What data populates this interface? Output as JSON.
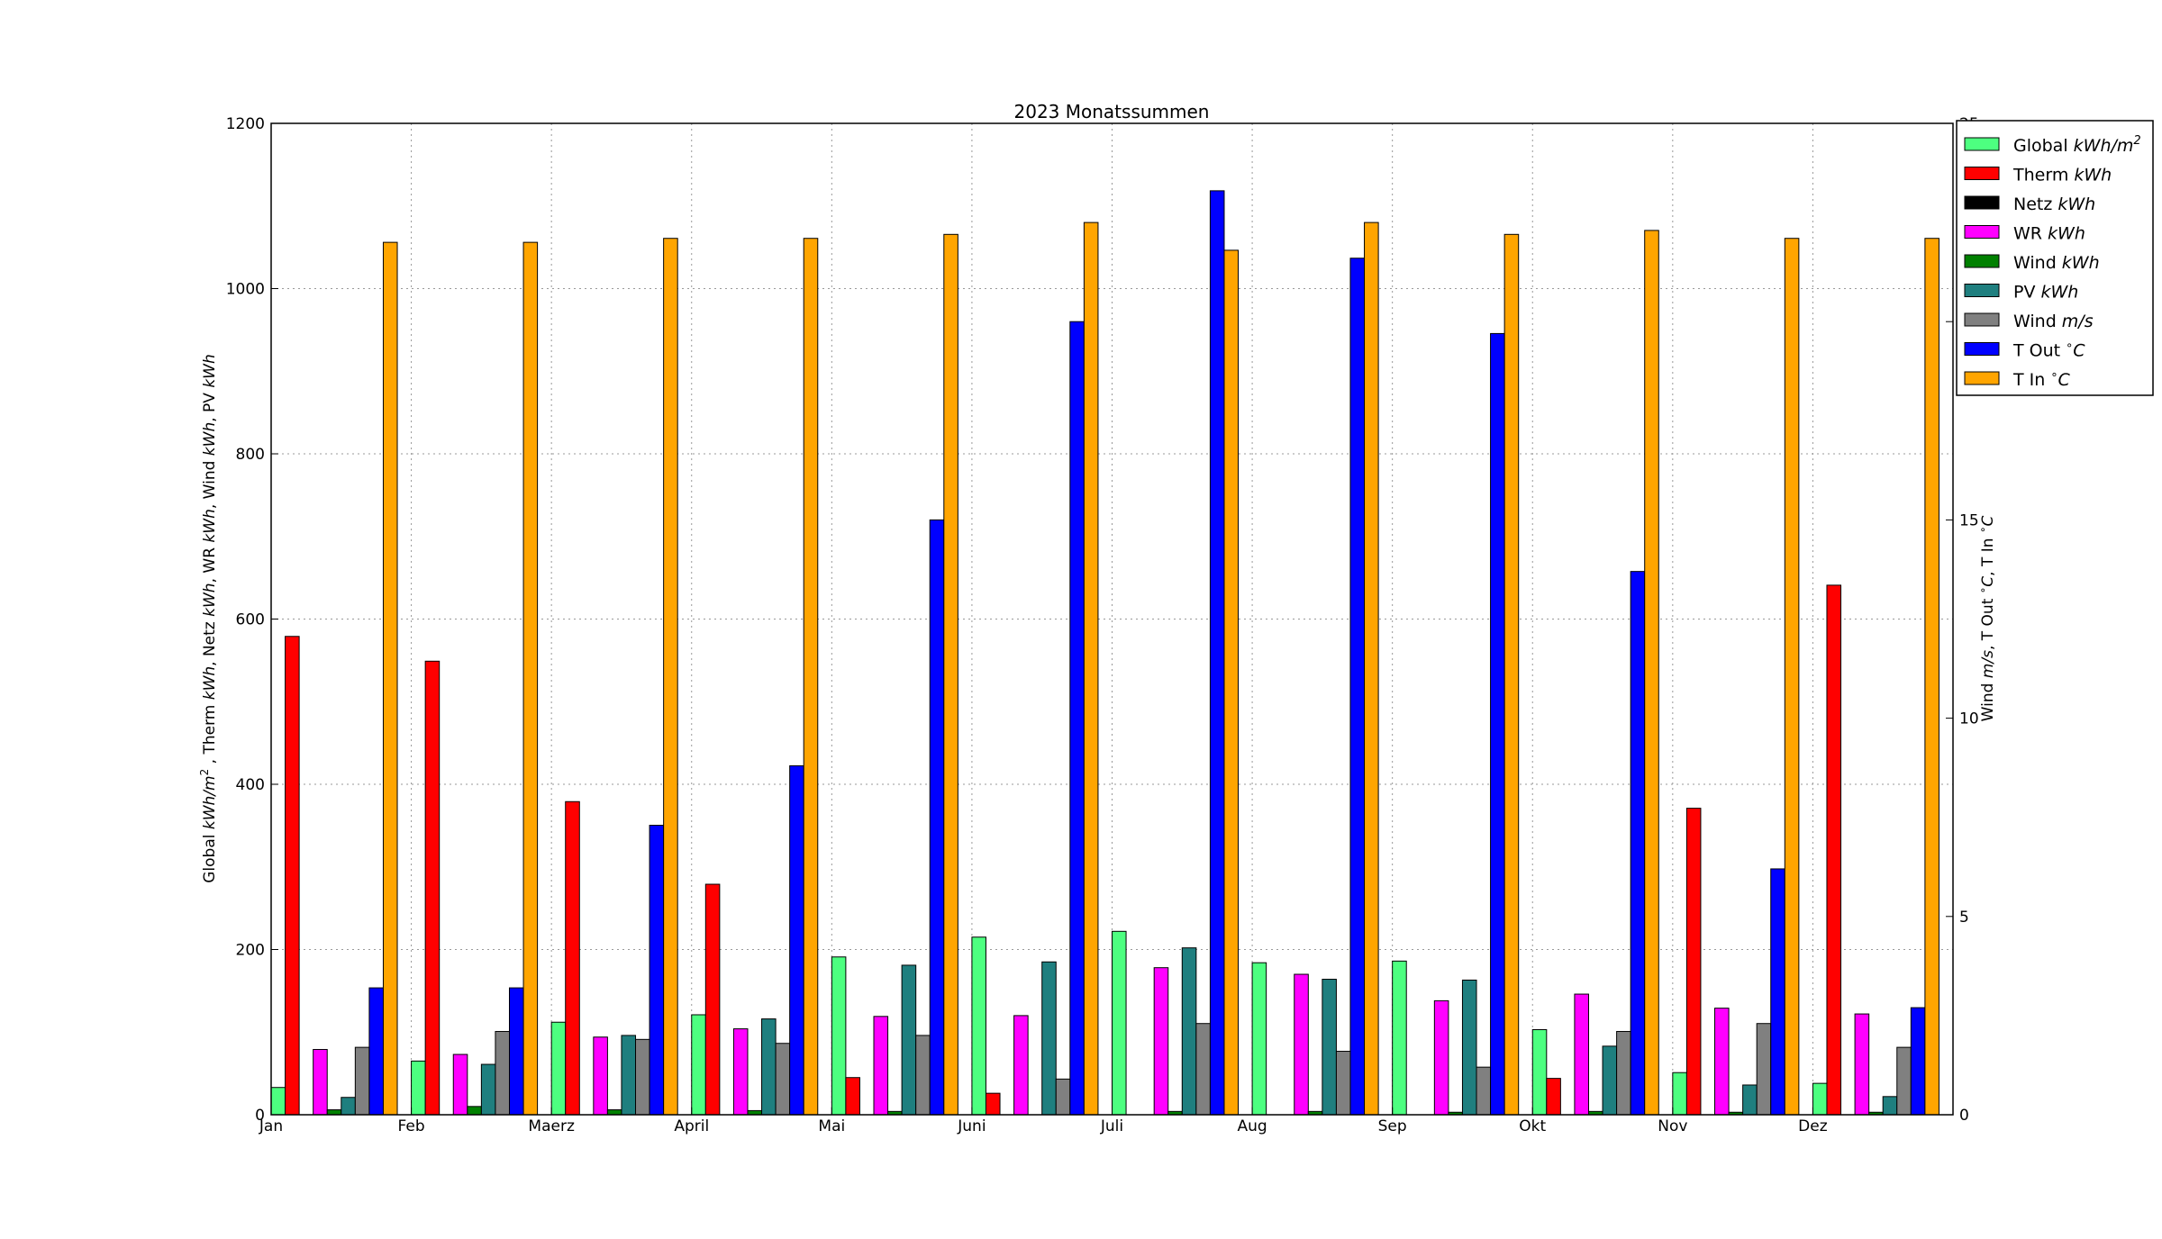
{
  "chart_data": {
    "type": "bar",
    "title": "2023 Monatssummen",
    "categories": [
      "Jan",
      "Feb",
      "Maerz",
      "April",
      "Mai",
      "Juni",
      "Juli",
      "Aug",
      "Sep",
      "Okt",
      "Nov",
      "Dez"
    ],
    "ylabel_left": "Global kWh/m², Therm kWh, Netz kWh, WR kWh, Wind kWh, PV kWh",
    "ylabel_right": "Wind m/s, T Out °C, T In °C",
    "ylim_left": [
      0,
      1200
    ],
    "ylim_right": [
      0,
      25
    ],
    "yticks_left": [
      "0",
      "200",
      "400",
      "600",
      "800",
      "1000",
      "1200"
    ],
    "yticks_right": [
      "0",
      "5",
      "10",
      "15",
      "20",
      "25"
    ],
    "grid": true,
    "legend_position": "right-top",
    "series": [
      {
        "name": "Global kWh/m²",
        "axis": "left",
        "color": "#4dff80",
        "values": [
          33,
          65,
          112,
          121,
          191,
          215,
          222,
          184,
          186,
          103,
          51,
          38
        ]
      },
      {
        "name": "Therm kWh",
        "axis": "left",
        "color": "#ff0000",
        "values": [
          579,
          549,
          379,
          279,
          45,
          26,
          0,
          0,
          0,
          44,
          371,
          641
        ]
      },
      {
        "name": "Netz kWh",
        "axis": "left",
        "color": "#000000",
        "values": [
          0,
          0,
          0,
          0,
          0,
          0,
          0,
          0,
          0,
          0,
          0,
          0
        ]
      },
      {
        "name": "WR kWh",
        "axis": "left",
        "color": "#ff00ff",
        "values": [
          79,
          73,
          94,
          104,
          119,
          120,
          178,
          170,
          138,
          146,
          129,
          122
        ]
      },
      {
        "name": "Wind kWh",
        "axis": "left",
        "color": "#008000",
        "values": [
          6,
          10,
          6,
          5,
          4,
          0,
          4,
          4,
          3,
          4,
          3,
          3
        ]
      },
      {
        "name": "PV kWh",
        "axis": "left",
        "color": "#1f7f7f",
        "values": [
          21,
          61,
          96,
          116,
          181,
          185,
          202,
          164,
          163,
          83,
          36,
          22
        ]
      },
      {
        "name": "Wind m/s",
        "axis": "right",
        "color": "#808080",
        "values": [
          1.7,
          2.1,
          1.9,
          1.8,
          2.0,
          0.9,
          2.3,
          1.6,
          1.2,
          2.1,
          2.3,
          1.7
        ]
      },
      {
        "name": "T Out °C",
        "axis": "right",
        "color": "#0000ff",
        "values": [
          3.2,
          3.2,
          7.3,
          8.8,
          15.0,
          20.0,
          23.3,
          21.6,
          19.7,
          13.7,
          6.2,
          2.7
        ]
      },
      {
        "name": "T In °C",
        "axis": "right",
        "color": "#ffa500",
        "values": [
          22.0,
          22.0,
          22.1,
          22.1,
          22.2,
          22.5,
          21.8,
          22.5,
          22.2,
          22.3,
          22.1,
          22.1
        ]
      }
    ]
  },
  "legend": [
    {
      "label": "Global ",
      "unit": "kWh/m",
      "sup": "2",
      "color": "#4dff80"
    },
    {
      "label": "Therm ",
      "unit": "kWh",
      "sup": "",
      "color": "#ff0000"
    },
    {
      "label": "Netz ",
      "unit": "kWh",
      "sup": "",
      "color": "#000000"
    },
    {
      "label": "WR ",
      "unit": "kWh",
      "sup": "",
      "color": "#ff00ff"
    },
    {
      "label": "Wind ",
      "unit": "kWh",
      "sup": "",
      "color": "#008000"
    },
    {
      "label": "PV ",
      "unit": "kWh",
      "sup": "",
      "color": "#1f7f7f"
    },
    {
      "label": "Wind ",
      "unit": "m/s",
      "sup": "",
      "color": "#808080"
    },
    {
      "label": "T Out ",
      "unit": "C",
      "sup": "∘",
      "supFirst": true,
      "color": "#0000ff"
    },
    {
      "label": "T In ",
      "unit": "C",
      "sup": "∘",
      "supFirst": true,
      "color": "#ffa500"
    }
  ]
}
